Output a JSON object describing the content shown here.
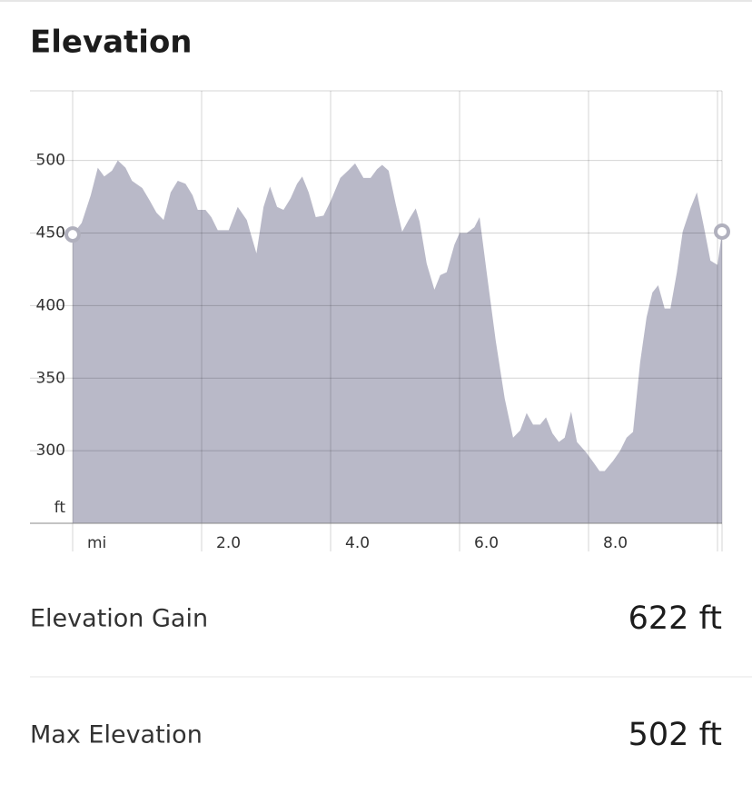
{
  "chart_data": {
    "type": "area",
    "title": "Elevation",
    "y_label": "ft",
    "color": "#b9b9c8",
    "xlim": [
      0,
      10.07
    ],
    "ylim": [
      250,
      548
    ],
    "xticks": [
      {
        "value": 0,
        "label": "mi"
      },
      {
        "value": 2,
        "label": "2.0"
      },
      {
        "value": 4,
        "label": "4.0"
      },
      {
        "value": 6,
        "label": "6.0"
      },
      {
        "value": 8,
        "label": "8.0"
      }
    ],
    "yticks": [
      300,
      350,
      400,
      450,
      500
    ],
    "grid": true,
    "x": [
      0,
      0.14,
      0.28,
      0.39,
      0.49,
      0.61,
      0.7,
      0.82,
      0.92,
      1.08,
      1.2,
      1.3,
      1.41,
      1.52,
      1.63,
      1.75,
      1.86,
      1.94,
      2.06,
      2.15,
      2.25,
      2.42,
      2.56,
      2.7,
      2.85,
      2.96,
      3.06,
      3.17,
      3.27,
      3.38,
      3.48,
      3.56,
      3.66,
      3.77,
      3.89,
      4.01,
      4.15,
      4.27,
      4.38,
      4.51,
      4.62,
      4.72,
      4.8,
      4.9,
      5.01,
      5.11,
      5.21,
      5.32,
      5.38,
      5.49,
      5.61,
      5.7,
      5.8,
      5.92,
      6.0,
      6.11,
      6.23,
      6.31,
      6.42,
      6.56,
      6.7,
      6.83,
      6.94,
      7.04,
      7.14,
      7.25,
      7.34,
      7.44,
      7.54,
      7.63,
      7.73,
      7.82,
      7.96,
      8.06,
      8.17,
      8.25,
      8.38,
      8.49,
      8.59,
      8.69,
      8.8,
      8.9,
      8.99,
      9.08,
      9.18,
      9.27,
      9.37,
      9.46,
      9.58,
      9.68,
      9.79,
      9.89,
      10.0,
      10.07
    ],
    "values": [
      449,
      457,
      476,
      495,
      489,
      493,
      500,
      495,
      486,
      481,
      472,
      464,
      459,
      478,
      486,
      484,
      476,
      466,
      466,
      461,
      452,
      452,
      468,
      459,
      436,
      468,
      482,
      468,
      466,
      474,
      484,
      489,
      478,
      461,
      462,
      473,
      488,
      493,
      498,
      488,
      488,
      494,
      497,
      493,
      470,
      451,
      459,
      467,
      458,
      429,
      411,
      421,
      423,
      442,
      450,
      450,
      454,
      461,
      423,
      376,
      336,
      309,
      314,
      326,
      318,
      318,
      323,
      312,
      306,
      309,
      327,
      306,
      299,
      293,
      286,
      286,
      293,
      300,
      309,
      313,
      361,
      392,
      409,
      414,
      398,
      398,
      423,
      451,
      467,
      478,
      454,
      431,
      428,
      451
    ]
  },
  "stats": [
    {
      "label": "Elevation Gain",
      "value": "622 ft"
    },
    {
      "label": "Max Elevation",
      "value": "502 ft"
    }
  ]
}
